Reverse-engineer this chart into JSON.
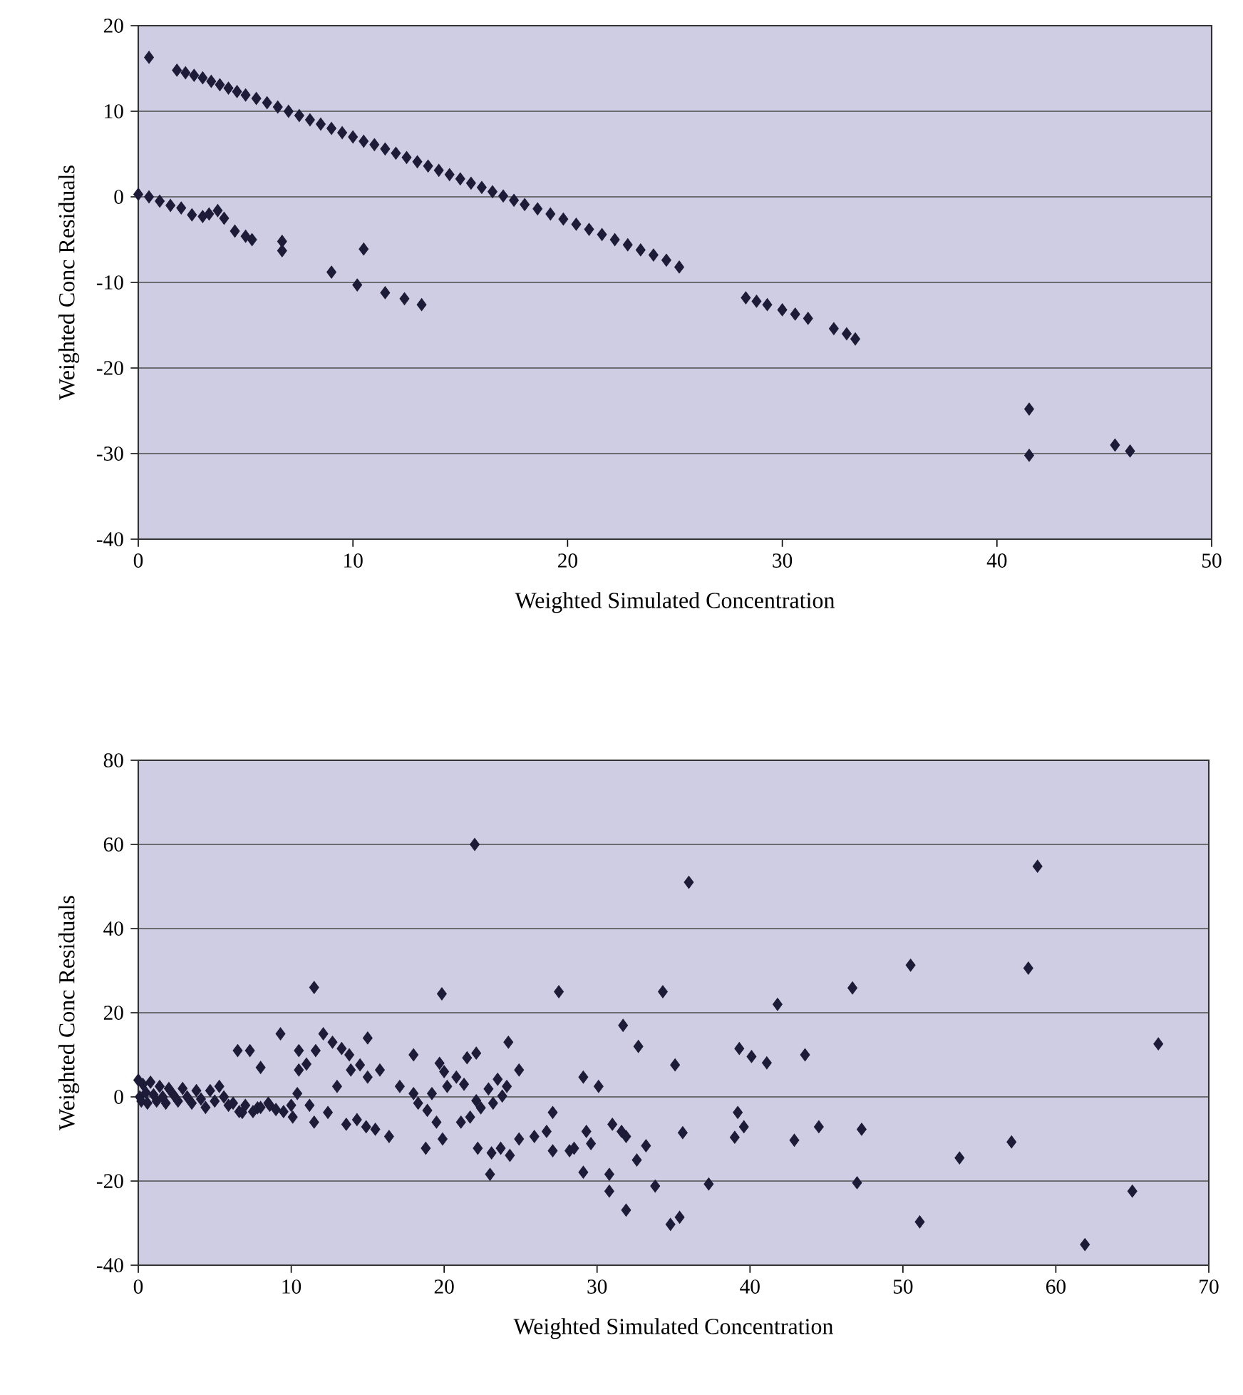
{
  "chart_data": [
    {
      "type": "scatter",
      "xlabel": "Weighted Simulated Concentration",
      "ylabel": "Weighted Conc Residuals",
      "xlim": [
        0,
        50
      ],
      "ylim": [
        -40,
        20
      ],
      "xticks": [
        0,
        10,
        20,
        30,
        40,
        50
      ],
      "yticks": [
        -40,
        -30,
        -20,
        -10,
        0,
        10,
        20
      ],
      "grid": "y",
      "marker": "diamond",
      "series": [
        {
          "color": "#1c1c38",
          "x": [
            0.5,
            1.8,
            2.2,
            2.6,
            3.0,
            3.4,
            3.8,
            4.2,
            4.6,
            5.0,
            5.5,
            6.0,
            6.5,
            7.0,
            7.5,
            8.0,
            8.5,
            9.0,
            9.5,
            10.0,
            10.5,
            11.0,
            11.5,
            12.0,
            12.5,
            13.0,
            13.5,
            14.0,
            14.5,
            15.0,
            15.5,
            16.0,
            16.5,
            17.0,
            17.5,
            18.0,
            18.6,
            19.2,
            19.8,
            20.4,
            21.0,
            21.6,
            22.2,
            22.8,
            23.4,
            24.0,
            24.6,
            25.2,
            28.3,
            28.8,
            29.3,
            30.0,
            30.6,
            31.2,
            32.4,
            33.0,
            33.4,
            41.5,
            41.5,
            45.5,
            46.2,
            0,
            0.5,
            1.0,
            1.5,
            2.0,
            2.5,
            3.0,
            3.3,
            3.7,
            4.0,
            4.5,
            5.0,
            5.3,
            6.7,
            6.7,
            9.0,
            10.5,
            10.2,
            11.5,
            12.4,
            13.2
          ],
          "values": [
            16.3,
            14.8,
            14.5,
            14.2,
            13.9,
            13.5,
            13.1,
            12.7,
            12.3,
            11.9,
            11.5,
            11.0,
            10.5,
            10.0,
            9.5,
            9.0,
            8.5,
            8.0,
            7.5,
            7.0,
            6.5,
            6.1,
            5.6,
            5.1,
            4.6,
            4.1,
            3.6,
            3.1,
            2.6,
            2.1,
            1.6,
            1.1,
            0.6,
            0.1,
            -0.4,
            -0.9,
            -1.4,
            -2.0,
            -2.6,
            -3.2,
            -3.8,
            -4.4,
            -5.0,
            -5.6,
            -6.2,
            -6.8,
            -7.4,
            -8.2,
            -11.8,
            -12.2,
            -12.6,
            -13.2,
            -13.7,
            -14.2,
            -15.4,
            -16.0,
            -16.6,
            -24.8,
            -30.2,
            -29.0,
            -29.7,
            0.3,
            0,
            -0.5,
            -1.0,
            -1.3,
            -2.1,
            -2.3,
            -2.0,
            -1.6,
            -2.5,
            -4.0,
            -4.6,
            -5.0,
            -5.2,
            -6.3,
            -8.8,
            -6.1,
            -10.3,
            -11.2,
            -11.9,
            -12.6
          ]
        }
      ]
    },
    {
      "type": "scatter",
      "xlabel": "Weighted Simulated Concentration",
      "ylabel": "Weighted Conc Residuals",
      "xlim": [
        0,
        70
      ],
      "ylim": [
        -40,
        80
      ],
      "xticks": [
        0,
        10,
        20,
        30,
        40,
        50,
        60,
        70
      ],
      "yticks": [
        -40,
        -20,
        0,
        20,
        40,
        60,
        80
      ],
      "grid": "y",
      "marker": "diamond",
      "series": [
        {
          "color": "#1c1c38",
          "x": [
            0,
            0.1,
            0.2,
            0.3,
            0.5,
            0.6,
            0.8,
            1.0,
            1.2,
            1.4,
            1.6,
            1.8,
            2.0,
            2.3,
            2.6,
            2.9,
            3.2,
            3.5,
            3.8,
            4.1,
            4.4,
            4.7,
            5.0,
            5.3,
            5.6,
            5.9,
            6.2,
            6.6,
            6.8,
            7.0,
            7.5,
            7.8,
            8.0,
            8.5,
            8.6,
            9.0,
            9.5,
            10.0,
            10.1,
            22.0,
            11.5,
            19.85,
            27.5,
            34.3,
            9.3,
            15.0,
            31.7,
            32.7,
            24.2,
            6.5,
            7.3,
            8.0,
            10.5,
            11.6,
            12.1,
            12.7,
            13.3,
            13.8,
            10.5,
            11.0,
            10.4,
            11.2,
            11.5,
            12.4,
            13.0,
            13.6,
            14.3,
            14.9,
            15.5,
            13.9,
            14.5,
            15.0,
            15.8,
            16.4,
            17.1,
            18.0,
            18.0,
            18.3,
            18.9,
            18.8,
            19.5,
            19.9,
            19.7,
            20.0,
            19.2,
            20.2,
            20.8,
            21.3,
            21.1,
            21.7,
            21.5,
            22.1,
            22.1,
            22.4,
            22.2,
            23.1,
            23.7,
            24.3,
            23.0,
            22.9,
            23.5,
            24.1,
            23.2,
            23.8,
            24.9,
            24.9,
            25.9,
            26.7,
            27.1,
            27.1,
            28.2,
            28.5,
            29.1,
            30.1,
            29.1,
            29.3,
            29.6,
            30.8,
            31.0,
            31.6,
            31.9,
            30.8,
            31.9,
            32.6,
            33.2,
            33.8,
            35.1,
            36.0,
            58.8,
            41.8,
            46.7,
            50.5,
            58.2,
            39.3,
            40.1,
            41.1,
            43.6,
            66.7,
            39.2,
            39.6,
            39.0,
            35.6,
            42.9,
            44.5,
            47.3,
            53.7,
            57.1,
            37.3,
            47.0,
            65.0,
            34.8,
            35.4,
            51.1,
            61.9
          ],
          "values": [
            4,
            0,
            -1,
            3,
            1,
            -1.5,
            3.5,
            0.5,
            -1,
            2.5,
            0,
            -1.5,
            2,
            0.5,
            -1,
            2,
            0,
            -1.5,
            1.5,
            -0.5,
            -2.5,
            1.5,
            -1,
            2.5,
            0,
            -2,
            -1.5,
            -3.5,
            -3.7,
            -2,
            -3.5,
            -2.6,
            -2.5,
            -1.5,
            -2,
            -3,
            -3.5,
            -2,
            -4.8,
            60,
            26,
            24.5,
            25,
            25,
            15,
            14,
            17,
            12,
            13,
            11,
            11,
            7,
            11,
            11,
            15,
            13,
            11.5,
            10,
            6.4,
            7.8,
            0.8,
            -2,
            -6,
            -3.7,
            2.5,
            -6.5,
            -5.4,
            -7.1,
            -7.7,
            6.4,
            7.6,
            4.7,
            6.4,
            -9.4,
            2.5,
            0.8,
            10,
            -1.5,
            -3.2,
            -12.2,
            -6,
            -10,
            8,
            6,
            0.8,
            2.5,
            4.7,
            3,
            -6,
            -4.8,
            9.3,
            10.4,
            -0.9,
            -2.6,
            -12.2,
            -13.3,
            -12.2,
            -13.9,
            -18.4,
            1.9,
            4.2,
            2.5,
            -1.5,
            0.2,
            6.4,
            -10,
            -9.4,
            -8.2,
            -3.7,
            -12.8,
            -12.8,
            -12.2,
            4.7,
            2.5,
            -17.9,
            -8.2,
            -11.1,
            -18.4,
            -6.5,
            -8.2,
            -9.4,
            -22.4,
            -26.9,
            -15,
            -11.6,
            -21.2,
            7.6,
            51,
            54.8,
            22,
            25.9,
            31.3,
            30.6,
            11.5,
            9.6,
            8.1,
            10,
            12.6,
            -3.7,
            -7.1,
            -9.6,
            -8.5,
            -10.3,
            -7.1,
            -7.7,
            -14.5,
            -10.7,
            -20.7,
            -20.4,
            -22.4,
            -30.3,
            -28.6,
            -29.7,
            -35.1
          ]
        }
      ]
    }
  ]
}
